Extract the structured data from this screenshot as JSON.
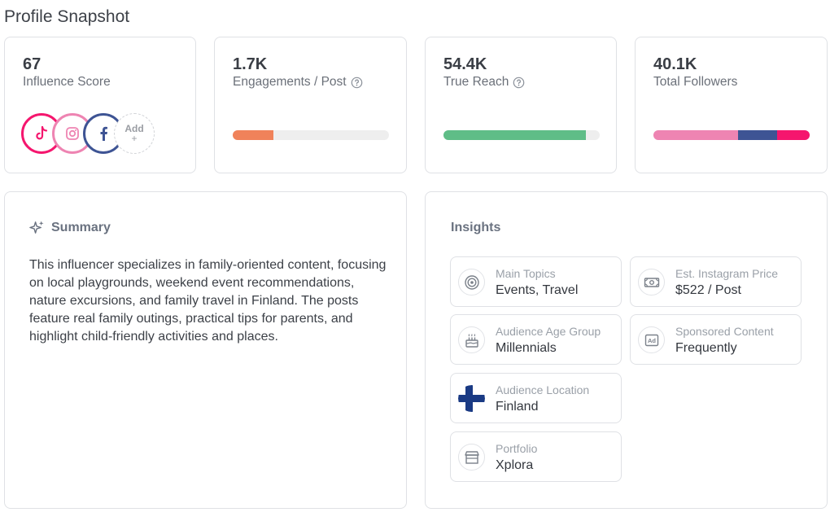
{
  "page": {
    "title": "Profile Snapshot"
  },
  "stats": {
    "influence": {
      "value": "67",
      "label": "Influence Score"
    },
    "engagement": {
      "value": "1.7K",
      "label": "Engagements / Post",
      "fill": 0.26,
      "color": "#f0825a"
    },
    "reach": {
      "value": "54.4K",
      "label": "True Reach",
      "fill": 0.91,
      "color": "#5fbd87"
    },
    "followers": {
      "value": "40.1K",
      "label": "Total Followers",
      "segments": [
        {
          "name": "instagram",
          "share": 0.54,
          "color": "#ee84b2"
        },
        {
          "name": "facebook",
          "share": 0.25,
          "color": "#3e5494"
        },
        {
          "name": "tiktok",
          "share": 0.21,
          "color": "#f5166e"
        }
      ]
    }
  },
  "socials": {
    "items": [
      {
        "icon": "tiktok-icon",
        "color": "#f5166e"
      },
      {
        "icon": "instagram-icon",
        "color": "#ee84b2"
      },
      {
        "icon": "facebook-icon",
        "color": "#3e5494"
      }
    ],
    "add_label": "Add",
    "add_plus": "+"
  },
  "summary": {
    "heading": "Summary",
    "text": "This influencer specializes in family-oriented content, focusing on local playgrounds, weekend event recommendations, nature excursions, and family travel in Finland. The posts feature real family outings, practical tips for parents, and highlight child-friendly activities and places."
  },
  "insights": {
    "heading": "Insights",
    "tiles": [
      {
        "key": "main_topics",
        "label": "Main Topics",
        "value": "Events, Travel",
        "icon": "target-icon"
      },
      {
        "key": "instagram_price",
        "label": "Est. Instagram Price",
        "value": "$522 / Post",
        "icon": "money-icon"
      },
      {
        "key": "audience_age",
        "label": "Audience Age Group",
        "value": "Millennials",
        "icon": "cake-icon"
      },
      {
        "key": "sponsored",
        "label": "Sponsored Content",
        "value": "Frequently",
        "icon": "ad-icon"
      },
      {
        "key": "audience_location",
        "label": "Audience Location",
        "value": "Finland",
        "icon": "finland-flag-icon"
      },
      {
        "key": "portfolio",
        "label": "Portfolio",
        "value": "Xplora",
        "icon": "store-icon"
      }
    ]
  },
  "colors": {
    "muted_text": "#6b7079",
    "border": "#dfe1e5",
    "accent_heading": "#6a7280"
  }
}
